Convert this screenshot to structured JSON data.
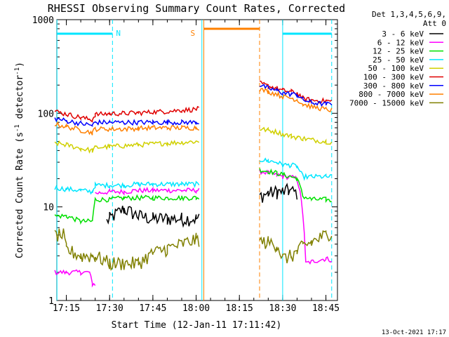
{
  "chart_data": {
    "type": "line",
    "title": "RHESSI Observing Summary Count Rates, Corrected",
    "xlabel": "Start Time (12-Jan-11 17:11:42)",
    "ylabel_main": "Corrected Count Rate (s",
    "ylabel_sup1": "-1",
    "ylabel_mid": " detector",
    "ylabel_sup2": "-1",
    "ylabel_end": ")",
    "y_scale": "log",
    "ylim": [
      1,
      1000
    ],
    "xlim": [
      "17:11:42",
      "18:49:00"
    ],
    "x_ticks": [
      "17:15",
      "17:30",
      "17:45",
      "18:00",
      "18:15",
      "18:30",
      "18:45"
    ],
    "y_ticks": [
      "1",
      "10",
      "100",
      "1000"
    ],
    "footer_date": "13-Oct-2021 17:17",
    "detectors": "Det 1,3,4,5,6,9,",
    "attenuator": "Att 0",
    "annotations": [
      {
        "text": "N",
        "time": "17:31",
        "color": "#00e6ff"
      },
      {
        "text": "S",
        "time": "18:00",
        "color": "#ff8000"
      }
    ],
    "colors": {
      "cyan": "#00e6ff",
      "orange": "#ff8000",
      "axis": "#000000"
    },
    "series": [
      {
        "name": "3 - 6 keV",
        "color": "#000000",
        "segments": [
          {
            "x": [
              "17:25",
              "17:29",
              "17:30",
              "17:35",
              "17:40",
              "17:45",
              "17:50",
              "17:55",
              "18:00",
              "18:01"
            ],
            "y": [
              null,
              7,
              7.5,
              9.5,
              8,
              7.5,
              7.5,
              7.5,
              7.5,
              7.5
            ]
          },
          {
            "x": [
              "18:22",
              "18:25",
              "18:28",
              "18:30",
              "18:32",
              "18:35"
            ],
            "y": [
              13,
              14,
              14.5,
              14.5,
              15,
              14
            ]
          }
        ]
      },
      {
        "name": "6 - 12 keV",
        "color": "#ff00ff",
        "segments": [
          {
            "x": [
              "17:11",
              "17:15",
              "17:20",
              "17:23",
              "17:24",
              "17:25"
            ],
            "y": [
              2,
              2,
              2,
              2,
              1.5,
              1.5
            ]
          },
          {
            "x": [
              "17:25",
              "17:30",
              "17:35",
              "17:40",
              "17:45",
              "17:50",
              "17:55",
              "18:00",
              "18:01"
            ],
            "y": [
              14,
              14.5,
              14.5,
              15,
              15,
              15,
              15,
              15,
              15
            ]
          },
          {
            "x": [
              "18:22",
              "18:25",
              "18:28",
              "18:30",
              "18:32",
              "18:35",
              "18:38",
              "18:40",
              "18:45",
              "18:47"
            ],
            "y": [
              24,
              23,
              22,
              21,
              21,
              20,
              2.5,
              2.6,
              2.8,
              2.7
            ]
          }
        ]
      },
      {
        "name": "12 - 25 keV",
        "color": "#00e000",
        "segments": [
          {
            "x": [
              "17:11",
              "17:15",
              "17:20",
              "17:24",
              "17:25",
              "17:30",
              "17:35",
              "17:40",
              "17:45",
              "17:50",
              "17:55",
              "18:00",
              "18:01"
            ],
            "y": [
              8,
              8,
              7,
              7,
              12,
              12,
              12.5,
              12.5,
              12.5,
              12.5,
              12.5,
              12.5,
              12.5
            ]
          },
          {
            "x": [
              "18:22",
              "18:25",
              "18:28",
              "18:30",
              "18:33",
              "18:35",
              "18:37",
              "18:40",
              "18:45",
              "18:47"
            ],
            "y": [
              25,
              24,
              23,
              22,
              21,
              20,
              13,
              12,
              12,
              11.5
            ]
          }
        ]
      },
      {
        "name": "25 - 50 keV",
        "color": "#00e6ff",
        "segments": [
          {
            "x": [
              "17:11",
              "17:15",
              "17:20",
              "17:24",
              "17:25",
              "17:30",
              "17:35",
              "17:40",
              "17:45",
              "17:50",
              "17:55",
              "18:00",
              "18:01"
            ],
            "y": [
              16,
              15.5,
              15,
              14.5,
              17,
              17,
              17,
              17.5,
              17.5,
              17.5,
              17.5,
              17.5,
              17.5
            ]
          },
          {
            "x": [
              "18:22",
              "18:25",
              "18:28",
              "18:30",
              "18:33",
              "18:35",
              "18:37",
              "18:40",
              "18:45",
              "18:47"
            ],
            "y": [
              32,
              31,
              30,
              28,
              28,
              27,
              21,
              21,
              21,
              21
            ]
          }
        ]
      },
      {
        "name": "50 - 100 keV",
        "color": "#d0d000",
        "segments": [
          {
            "x": [
              "17:11",
              "17:15",
              "17:20",
              "17:24",
              "17:25",
              "17:30",
              "17:35",
              "17:40",
              "17:45",
              "17:50",
              "17:55",
              "18:00",
              "18:01"
            ],
            "y": [
              48,
              46,
              42,
              40,
              43,
              44,
              45,
              46,
              47,
              48,
              49,
              50,
              50
            ]
          },
          {
            "x": [
              "18:22",
              "18:25",
              "18:28",
              "18:30",
              "18:33",
              "18:35",
              "18:37",
              "18:40",
              "18:45",
              "18:47"
            ],
            "y": [
              68,
              66,
              63,
              60,
              57,
              55,
              54,
              52,
              50,
              49
            ]
          }
        ]
      },
      {
        "name": "100 - 300 keV",
        "color": "#e00000",
        "segments": [
          {
            "x": [
              "17:11",
              "17:15",
              "17:20",
              "17:24",
              "17:25",
              "17:30",
              "17:35",
              "17:40",
              "17:45",
              "17:50",
              "17:55",
              "18:00",
              "18:01"
            ],
            "y": [
              105,
              98,
              90,
              85,
              97,
              99,
              100,
              101,
              103,
              105,
              108,
              110,
              112
            ]
          },
          {
            "x": [
              "18:22",
              "18:25",
              "18:28",
              "18:30",
              "18:33",
              "18:35",
              "18:37",
              "18:40",
              "18:45",
              "18:47"
            ],
            "y": [
              210,
              195,
              185,
              175,
              170,
              165,
              145,
              138,
              135,
              135
            ]
          }
        ]
      },
      {
        "name": "300 - 800 keV",
        "color": "#0000ff",
        "segments": [
          {
            "x": [
              "17:11",
              "17:15",
              "17:20",
              "17:24",
              "17:25",
              "17:30",
              "17:35",
              "17:40",
              "17:45",
              "17:50",
              "17:55",
              "18:00",
              "18:01"
            ],
            "y": [
              88,
              83,
              78,
              74,
              80,
              80,
              80,
              80,
              80,
              80,
              80,
              80,
              80
            ]
          },
          {
            "x": [
              "18:22",
              "18:25",
              "18:28",
              "18:30",
              "18:33",
              "18:35",
              "18:37",
              "18:40",
              "18:45",
              "18:47"
            ],
            "y": [
              200,
              185,
              175,
              165,
              160,
              158,
              140,
              130,
              125,
              125
            ]
          }
        ]
      },
      {
        "name": "800 - 7000 keV",
        "color": "#ff8000",
        "segments": [
          {
            "x": [
              "17:11",
              "17:15",
              "17:20",
              "17:24",
              "17:25",
              "17:30",
              "17:35",
              "17:40",
              "17:45",
              "17:50",
              "17:55",
              "18:00",
              "18:01"
            ],
            "y": [
              77,
              72,
              66,
              62,
              68,
              68,
              68,
              69,
              70,
              70,
              70,
              70,
              70
            ]
          },
          {
            "x": [
              "18:22",
              "18:25",
              "18:28",
              "18:30",
              "18:33",
              "18:35",
              "18:37",
              "18:40",
              "18:45",
              "18:47"
            ],
            "y": [
              180,
              170,
              160,
              150,
              145,
              140,
              125,
              118,
              110,
              108
            ]
          }
        ]
      },
      {
        "name": "7000 - 15000 keV",
        "color": "#808000",
        "segments": [
          {
            "x": [
              "17:11",
              "17:14",
              "17:15",
              "17:20",
              "17:24",
              "17:25",
              "17:30",
              "17:35",
              "17:40",
              "17:45",
              "17:50",
              "17:55",
              "18:00",
              "18:01"
            ],
            "y": [
              5,
              5,
              3.5,
              3,
              3,
              3,
              2.5,
              2.5,
              2.5,
              3.2,
              3.6,
              4,
              4.5,
              4.5
            ]
          },
          {
            "x": [
              "18:22",
              "18:25",
              "18:28",
              "18:30",
              "18:33",
              "18:35",
              "18:37",
              "18:40",
              "18:45",
              "18:47"
            ],
            "y": [
              4.2,
              4.2,
              4,
              2.8,
              3,
              3.3,
              3.8,
              4.2,
              5,
              5.5
            ]
          }
        ]
      }
    ]
  }
}
